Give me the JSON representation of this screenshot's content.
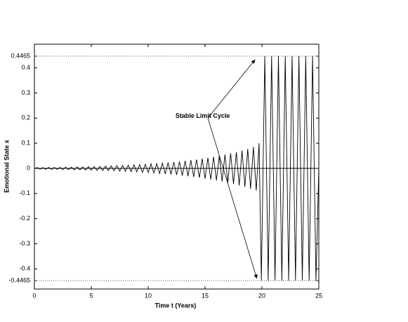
{
  "chart_data": {
    "type": "line",
    "x_label": "Time t (Years)",
    "y_label": "Emotional State x",
    "xlim": [
      0,
      25
    ],
    "ylim": [
      -0.48,
      0.494
    ],
    "xticks": [
      0,
      5,
      10,
      15,
      20,
      25
    ],
    "yticks": [
      {
        "value": -0.4465,
        "label": "-0.4465"
      },
      -0.4,
      -0.3,
      -0.2,
      -0.1,
      0,
      0.1,
      0.2,
      0.3,
      0.4,
      {
        "value": 0.4465,
        "label": "0.4465"
      }
    ],
    "hlines": [
      {
        "y": 0.4465,
        "style": "dotted"
      },
      {
        "y": -0.4465,
        "style": "dotted"
      },
      {
        "y": 0,
        "style": "solid"
      }
    ],
    "series": [
      {
        "color": "#000000",
        "x": [
          0,
          0.25,
          0.5,
          0.75,
          1,
          1.25,
          1.5,
          1.75,
          2,
          2.25,
          2.5,
          2.75,
          3,
          3.25,
          3.5,
          3.75,
          4,
          4.25,
          4.5,
          4.75,
          5,
          5.25,
          5.5,
          5.75,
          6,
          6.25,
          6.5,
          6.75,
          7,
          7.25,
          7.5,
          7.75,
          8,
          8.25,
          8.5,
          8.75,
          9,
          9.25,
          9.5,
          9.75,
          10,
          10.25,
          10.5,
          10.75,
          11,
          11.25,
          11.5,
          11.75,
          12,
          12.25,
          12.5,
          12.75,
          13,
          13.25,
          13.5,
          13.75,
          14,
          14.25,
          14.5,
          14.75,
          15,
          15.25,
          15.5,
          15.75,
          16,
          16.25,
          16.5,
          16.75,
          17,
          17.25,
          17.5,
          17.75,
          18,
          18.25,
          18.5,
          18.75,
          19,
          19.25,
          19.5,
          19.75,
          19.95,
          20.25,
          20.55,
          20.85,
          21.15,
          21.45,
          21.75,
          22.05,
          22.35,
          22.65,
          22.95,
          23.25,
          23.55,
          23.85,
          24.15,
          24.45,
          24.75,
          25
        ],
        "values": [
          0,
          0.003,
          -0.003,
          0.003,
          -0.004,
          0.004,
          -0.004,
          0.004,
          -0.004,
          0.004,
          -0.005,
          0.005,
          -0.005,
          0.005,
          -0.006,
          0.006,
          -0.006,
          0.006,
          -0.007,
          0.007,
          -0.007,
          0.007,
          -0.008,
          0.008,
          -0.009,
          0.009,
          -0.009,
          0.01,
          -0.01,
          0.011,
          -0.011,
          0.012,
          -0.012,
          0.013,
          -0.013,
          0.014,
          -0.014,
          0.015,
          -0.016,
          0.016,
          -0.017,
          0.018,
          -0.019,
          0.019,
          -0.02,
          0.021,
          -0.022,
          0.023,
          -0.024,
          0.025,
          -0.026,
          0.027,
          -0.029,
          0.03,
          -0.031,
          0.033,
          -0.034,
          0.035,
          -0.037,
          0.039,
          -0.041,
          0.042,
          -0.044,
          0.046,
          -0.048,
          0.05,
          -0.052,
          0.055,
          -0.057,
          0.06,
          -0.062,
          0.065,
          -0.068,
          0.071,
          -0.074,
          0.077,
          -0.081,
          0.085,
          -0.088,
          0.1,
          -0.4465,
          0.4465,
          -0.4465,
          0.4465,
          -0.4465,
          0.4465,
          -0.4465,
          0.4465,
          -0.4465,
          0.4465,
          -0.4465,
          0.4465,
          -0.4465,
          0.4465,
          -0.4465,
          0.4465,
          -0.4465,
          0
        ]
      }
    ],
    "annotation": {
      "text": "Stable Limit Cycle",
      "x": 12.4,
      "y": 0.208,
      "from": [
        15.25,
        0.2
      ],
      "arrows": [
        [
          19.4,
          0.433
        ],
        [
          19.55,
          -0.438
        ]
      ]
    }
  }
}
